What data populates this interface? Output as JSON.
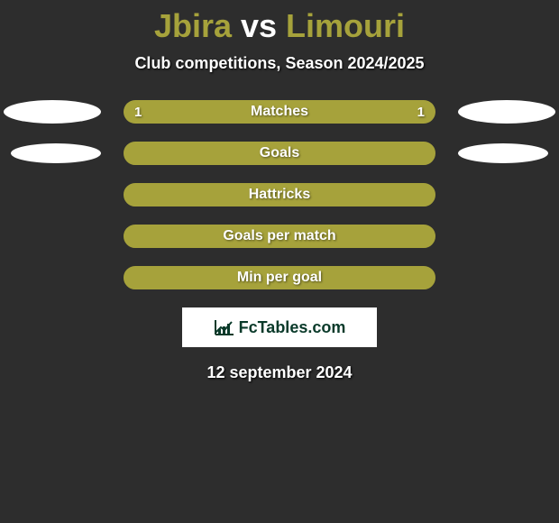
{
  "background_color": "#2d2d2d",
  "title": {
    "player1": "Jbira",
    "vs": " vs ",
    "player2": "Limouri",
    "player1_color": "#a6a23b",
    "vs_color": "#ffffff",
    "player2_color": "#a6a23b",
    "fontsize": 36
  },
  "subtitle": "Club competitions, Season 2024/2025",
  "ellipse_color": "#ffffff",
  "rows": [
    {
      "label": "Matches",
      "left_value": "1",
      "right_value": "1",
      "bar_fill": "#a6a23b",
      "bar_border": "#a6a23b",
      "framed": false,
      "show_left_ellipse": true,
      "show_right_ellipse": true,
      "ellipse_small": false
    },
    {
      "label": "Goals",
      "left_value": "",
      "right_value": "",
      "bar_fill": "#a6a23b",
      "bar_border": "#a6a23b",
      "framed": true,
      "show_left_ellipse": true,
      "show_right_ellipse": true,
      "ellipse_small": true
    },
    {
      "label": "Hattricks",
      "left_value": "",
      "right_value": "",
      "bar_fill": "#a6a23b",
      "bar_border": "#a6a23b",
      "framed": true,
      "show_left_ellipse": false,
      "show_right_ellipse": false,
      "ellipse_small": false
    },
    {
      "label": "Goals per match",
      "left_value": "",
      "right_value": "",
      "bar_fill": "#a6a23b",
      "bar_border": "#a6a23b",
      "framed": true,
      "show_left_ellipse": false,
      "show_right_ellipse": false,
      "ellipse_small": false
    },
    {
      "label": "Min per goal",
      "left_value": "",
      "right_value": "",
      "bar_fill": "#a6a23b",
      "bar_border": "#a6a23b",
      "framed": true,
      "show_left_ellipse": false,
      "show_right_ellipse": false,
      "ellipse_small": false
    }
  ],
  "logo": {
    "text": "FcTables.com",
    "bg": "#ffffff",
    "text_color": "#0a3a2a",
    "icon_color": "#0a3a2a"
  },
  "date": "12 september 2024"
}
